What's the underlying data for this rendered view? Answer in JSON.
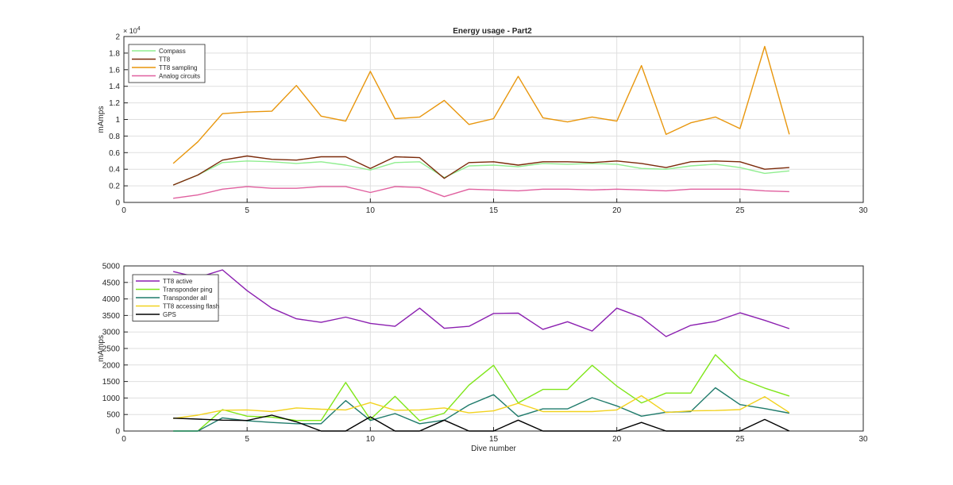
{
  "chart_data": [
    {
      "type": "line",
      "title": "Energy usage - Part2",
      "xlabel": "",
      "ylabel": "mAmps",
      "exponent_label": "× 10",
      "exponent_power": "4",
      "xlim": [
        0,
        30
      ],
      "ylim": [
        0,
        2
      ],
      "xticks": [
        0,
        5,
        10,
        15,
        20,
        25,
        30
      ],
      "yticks": [
        0,
        0.2,
        0.4,
        0.6,
        0.8,
        1,
        1.2,
        1.4,
        1.6,
        1.8,
        2
      ],
      "ytick_labels": [
        "0",
        "0.2",
        "0.4",
        "0.6",
        "0.8",
        "1",
        "1.2",
        "1.4",
        "1.6",
        "1.8",
        "2"
      ],
      "grid": true,
      "legend_position": "top-left",
      "x": [
        2,
        3,
        4,
        5,
        6,
        7,
        8,
        9,
        10,
        11,
        12,
        13,
        14,
        15,
        16,
        17,
        18,
        19,
        20,
        21,
        22,
        23,
        24,
        25,
        26,
        27
      ],
      "series": [
        {
          "name": "Compass",
          "color": "#90ee90",
          "values": [
            0.21,
            0.33,
            0.48,
            0.5,
            0.49,
            0.47,
            0.49,
            0.45,
            0.39,
            0.48,
            0.49,
            0.3,
            0.44,
            0.45,
            0.43,
            0.47,
            0.46,
            0.47,
            0.46,
            0.41,
            0.4,
            0.44,
            0.46,
            0.42,
            0.35,
            0.38
          ]
        },
        {
          "name": "TT8",
          "color": "#7b2a0a",
          "values": [
            0.21,
            0.33,
            0.51,
            0.56,
            0.52,
            0.51,
            0.55,
            0.55,
            0.41,
            0.55,
            0.54,
            0.29,
            0.48,
            0.49,
            0.45,
            0.49,
            0.49,
            0.48,
            0.5,
            0.47,
            0.42,
            0.49,
            0.5,
            0.49,
            0.4,
            0.42
          ]
        },
        {
          "name": "TT8 sampling",
          "color": "#e8960c",
          "values": [
            0.47,
            0.73,
            1.07,
            1.09,
            1.1,
            1.41,
            1.04,
            0.98,
            1.58,
            1.01,
            1.03,
            1.23,
            0.94,
            1.01,
            1.52,
            1.02,
            0.97,
            1.03,
            0.98,
            1.65,
            0.82,
            0.96,
            1.03,
            0.89,
            1.88,
            0.82
          ]
        },
        {
          "name": "Analog circuits",
          "color": "#e0609f",
          "values": [
            0.05,
            0.09,
            0.16,
            0.19,
            0.17,
            0.17,
            0.19,
            0.19,
            0.12,
            0.19,
            0.18,
            0.07,
            0.16,
            0.15,
            0.14,
            0.16,
            0.16,
            0.15,
            0.16,
            0.15,
            0.14,
            0.16,
            0.16,
            0.16,
            0.14,
            0.13
          ]
        }
      ]
    },
    {
      "type": "line",
      "title": "",
      "xlabel": "Dive number",
      "ylabel": "mAmps",
      "xlim": [
        0,
        30
      ],
      "ylim": [
        0,
        5000
      ],
      "xticks": [
        0,
        5,
        10,
        15,
        20,
        25,
        30
      ],
      "yticks": [
        0,
        500,
        1000,
        1500,
        2000,
        2500,
        3000,
        3500,
        4000,
        4500,
        5000
      ],
      "ytick_labels": [
        "0",
        "500",
        "1000",
        "1500",
        "2000",
        "2500",
        "3000",
        "3500",
        "4000",
        "4500",
        "5000"
      ],
      "grid": true,
      "legend_position": "top-left",
      "x": [
        2,
        3,
        4,
        5,
        6,
        7,
        8,
        9,
        10,
        11,
        12,
        13,
        14,
        15,
        16,
        17,
        18,
        19,
        20,
        21,
        22,
        23,
        24,
        25,
        26,
        27
      ],
      "series": [
        {
          "name": "TT8 active",
          "color": "#8b1fb0",
          "values": [
            4830,
            4650,
            4880,
            4250,
            3720,
            3400,
            3290,
            3450,
            3260,
            3170,
            3720,
            3110,
            3170,
            3560,
            3570,
            3080,
            3310,
            3030,
            3720,
            3440,
            2860,
            3200,
            3320,
            3580,
            3350,
            3100
          ]
        },
        {
          "name": "Transponder ping",
          "color": "#7fe619",
          "values": [
            0,
            0,
            650,
            450,
            420,
            320,
            320,
            1470,
            350,
            1050,
            310,
            540,
            1390,
            1990,
            850,
            1260,
            1260,
            1990,
            1360,
            850,
            1150,
            1150,
            2310,
            1590,
            1300,
            1060
          ]
        },
        {
          "name": "Transponder all",
          "color": "#1f7b6b",
          "values": [
            0,
            0,
            400,
            310,
            260,
            220,
            220,
            920,
            320,
            530,
            220,
            330,
            790,
            1100,
            440,
            670,
            670,
            1010,
            760,
            450,
            570,
            590,
            1310,
            800,
            680,
            540
          ]
        },
        {
          "name": "TT8 accessing flash",
          "color": "#f2d21f",
          "values": [
            380,
            480,
            630,
            640,
            590,
            700,
            660,
            640,
            860,
            630,
            640,
            700,
            550,
            610,
            840,
            590,
            590,
            590,
            640,
            1070,
            560,
            610,
            620,
            650,
            1040,
            560
          ]
        },
        {
          "name": "GPS",
          "color": "#000000",
          "values": [
            390,
            360,
            330,
            320,
            480,
            280,
            0,
            0,
            430,
            0,
            0,
            330,
            0,
            0,
            330,
            0,
            0,
            0,
            0,
            260,
            0,
            0,
            0,
            0,
            350,
            0
          ]
        }
      ]
    }
  ]
}
